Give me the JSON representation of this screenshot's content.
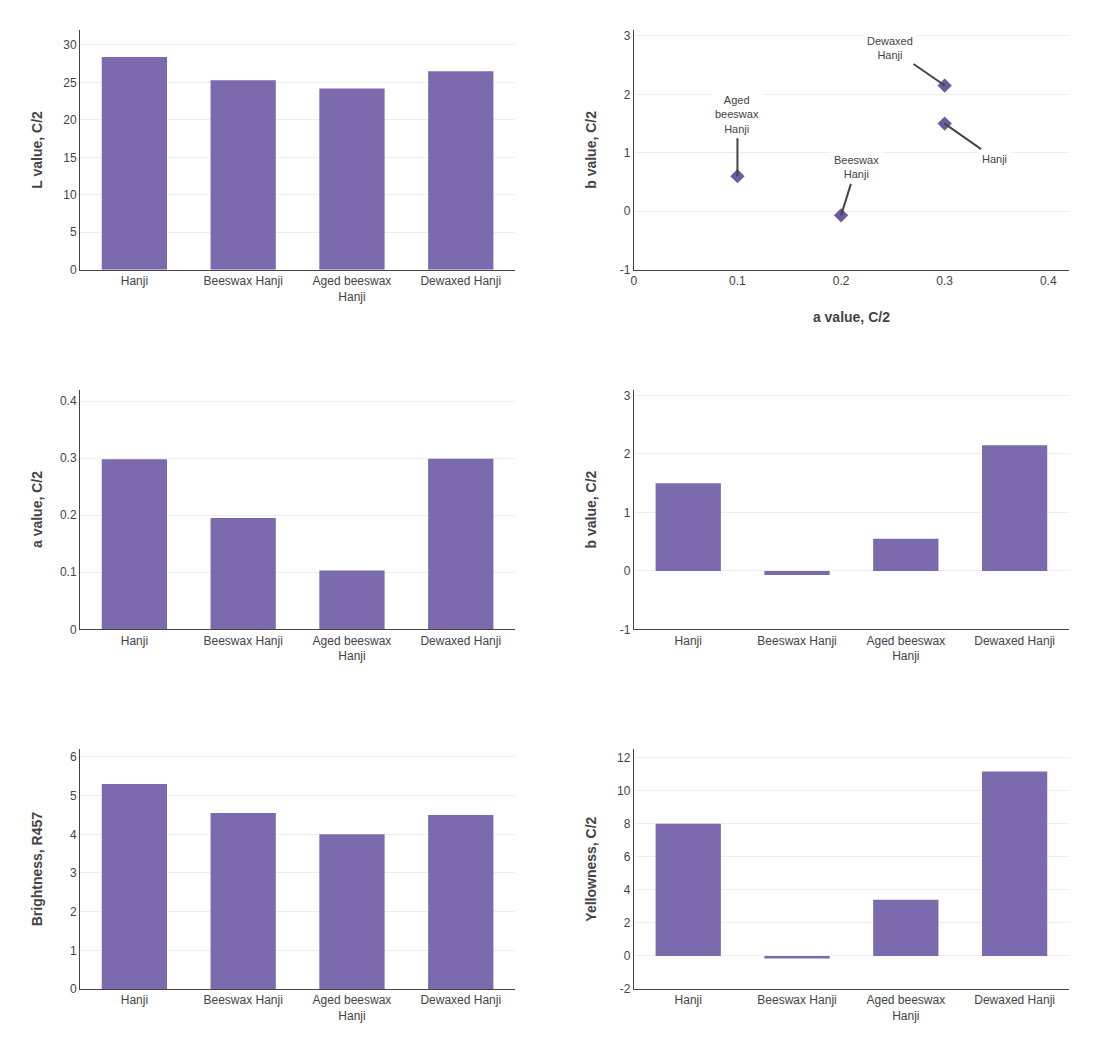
{
  "chart_data": [
    {
      "type": "bar",
      "categories": [
        "Hanji",
        "Beeswax Hanji",
        "Aged beeswax\nHanji",
        "Dewaxed Hanji"
      ],
      "values": [
        28.4,
        25.3,
        24.2,
        26.5
      ],
      "color": "#7B6BAE",
      "ylabel": "L value, C/2",
      "ylim": [
        0,
        32
      ],
      "yticks": [
        0,
        5,
        10,
        15,
        20,
        25,
        30
      ],
      "grid": true
    },
    {
      "type": "scatter",
      "x": [
        0.3,
        0.2,
        0.1,
        0.3
      ],
      "values": [
        1.5,
        -0.07,
        0.6,
        2.15
      ],
      "color": "#6B5A9E",
      "marker": "diamond",
      "xlabel": "a value, C/2",
      "ylabel": "b value, C/2",
      "xlim": [
        0,
        0.42
      ],
      "xticks": [
        0,
        0.1,
        0.2,
        0.3,
        0.4
      ],
      "ylim": [
        -1,
        3.1
      ],
      "yticks": [
        -1,
        0,
        1,
        2,
        3
      ],
      "grid": true,
      "annotations": [
        {
          "text": "Hanji",
          "x": 0.3,
          "y": 1.5
        },
        {
          "text": "Beeswax\nHanji",
          "x": 0.2,
          "y": -0.07
        },
        {
          "text": "Aged\nbeeswax\nHanji",
          "x": 0.1,
          "y": 0.6
        },
        {
          "text": "Dewaxed\nHanji",
          "x": 0.3,
          "y": 2.15
        }
      ]
    },
    {
      "type": "bar",
      "categories": [
        "Hanji",
        "Beeswax Hanji",
        "Aged beeswax\nHanji",
        "Dewaxed Hanji"
      ],
      "values": [
        0.298,
        0.195,
        0.103,
        0.299
      ],
      "color": "#7B6BAE",
      "ylabel": "a value, C/2",
      "ylim": [
        0,
        0.42
      ],
      "yticks": [
        0,
        0.1,
        0.2,
        0.3,
        0.4
      ],
      "grid": true
    },
    {
      "type": "bar",
      "categories": [
        "Hanji",
        "Beeswax Hanji",
        "Aged beeswax\nHanji",
        "Dewaxed Hanji"
      ],
      "values": [
        1.5,
        -0.07,
        0.55,
        2.15
      ],
      "color": "#7B6BAE",
      "ylabel": "b value, C/2",
      "ylim": [
        -1,
        3.1
      ],
      "yticks": [
        -1,
        0,
        1,
        2,
        3
      ],
      "grid": true
    },
    {
      "type": "bar",
      "categories": [
        "Hanji",
        "Beeswax Hanji",
        "Aged beeswax\nHanji",
        "Dewaxed Hanji"
      ],
      "values": [
        5.3,
        4.55,
        4.0,
        4.5
      ],
      "color": "#7B6BAE",
      "ylabel": "Brightness, R457",
      "ylim": [
        0,
        6.2
      ],
      "yticks": [
        0,
        1,
        2,
        3,
        4,
        5,
        6
      ],
      "grid": true
    },
    {
      "type": "bar",
      "categories": [
        "Hanji",
        "Beeswax Hanji",
        "Aged beeswax\nHanji",
        "Dewaxed Hanji"
      ],
      "values": [
        8.0,
        -0.15,
        3.4,
        11.15
      ],
      "color": "#7B6BAE",
      "ylabel": "Yellowness, C/2",
      "ylim": [
        -2,
        12.5
      ],
      "yticks": [
        -2,
        0,
        2,
        4,
        6,
        8,
        10,
        12
      ],
      "grid": true
    }
  ]
}
